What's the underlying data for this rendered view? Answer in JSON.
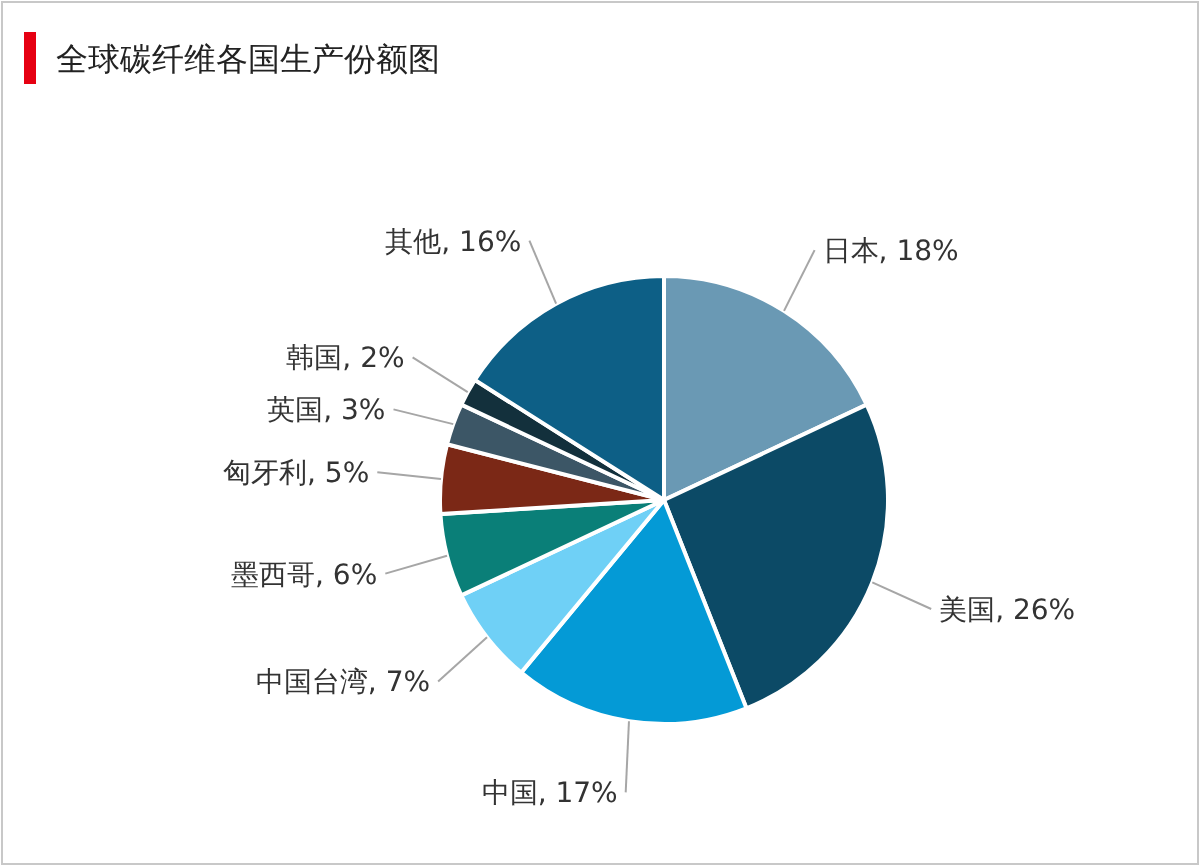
{
  "chart_data": {
    "type": "pie",
    "title": "全球碳纤维各国生产份额图",
    "categories": [
      "日本",
      "美国",
      "中国",
      "中国台湾",
      "墨西哥",
      "匈牙利",
      "英国",
      "韩国",
      "其他"
    ],
    "values": [
      18,
      26,
      17,
      7,
      6,
      5,
      3,
      2,
      16
    ],
    "value_labels": [
      "18%",
      "26%",
      "17%",
      "7%",
      "6%",
      "5%",
      "3%",
      "2%",
      "16%"
    ],
    "colors": [
      "#6a99b4",
      "#0c4a66",
      "#049ad6",
      "#6fd0f6",
      "#0a7f78",
      "#7b2816",
      "#3c5666",
      "#13303c",
      "#0d5f86"
    ]
  }
}
